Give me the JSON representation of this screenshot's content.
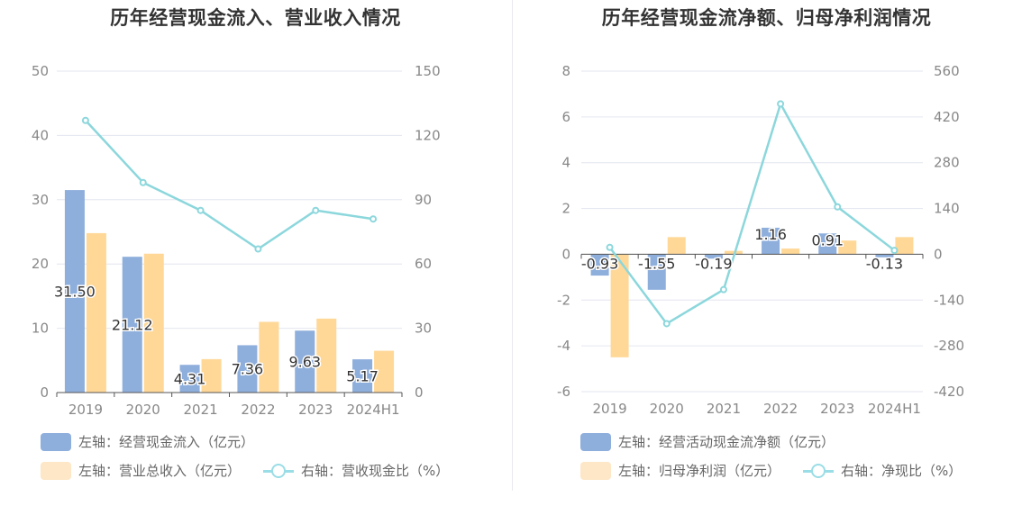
{
  "chart_data": [
    {
      "type": "bar",
      "title": "历年经营现金流入、营业收入情况",
      "categories": [
        "2019",
        "2020",
        "2021",
        "2022",
        "2023",
        "2024H1"
      ],
      "left_axis": {
        "ylim": [
          0,
          50
        ],
        "ticks": [
          0,
          10,
          20,
          30,
          40,
          50
        ]
      },
      "right_axis": {
        "ylim": [
          0,
          150
        ],
        "ticks": [
          0,
          30,
          60,
          90,
          120,
          150
        ]
      },
      "grid": true,
      "legend_position": "bottom",
      "series": [
        {
          "name": "左轴：经营现金流入（亿元）",
          "kind": "bar",
          "axis": "left",
          "color": "#8eaedc",
          "values": [
            31.5,
            21.12,
            4.31,
            7.36,
            9.63,
            5.17
          ],
          "labels": [
            "31.50",
            "21.12",
            "4.31",
            "7.36",
            "9.63",
            "5.17"
          ]
        },
        {
          "name": "左轴：营业总收入（亿元）",
          "kind": "bar",
          "axis": "left",
          "color": "#ffd898",
          "values": [
            24.8,
            21.6,
            5.2,
            11.0,
            11.5,
            6.5
          ]
        },
        {
          "name": "右轴：营收现金比（%）",
          "kind": "line",
          "axis": "right",
          "color": "#8cd7dc",
          "values": [
            127,
            98,
            85,
            67,
            85,
            81
          ]
        }
      ]
    },
    {
      "type": "bar",
      "title": "历年经营现金流净额、归母净利润情况",
      "categories": [
        "2019",
        "2020",
        "2021",
        "2022",
        "2023",
        "2024H1"
      ],
      "left_axis": {
        "ylim": [
          -6,
          8
        ],
        "ticks": [
          -6,
          -4,
          -2,
          0,
          2,
          4,
          6,
          8
        ]
      },
      "right_axis": {
        "ylim": [
          -420,
          560
        ],
        "ticks": [
          -420,
          -280,
          -140,
          0,
          140,
          280,
          420,
          560
        ]
      },
      "grid": true,
      "legend_position": "bottom",
      "series": [
        {
          "name": "左轴：经营活动现金流净额（亿元）",
          "kind": "bar",
          "axis": "left",
          "color": "#8eaedc",
          "values": [
            -0.93,
            -1.55,
            -0.19,
            1.16,
            0.91,
            -0.13
          ],
          "labels": [
            "-0.93",
            "-1.55",
            "-0.19",
            "1.16",
            "0.91",
            "-0.13"
          ]
        },
        {
          "name": "左轴：归母净利润（亿元）",
          "kind": "bar",
          "axis": "left",
          "color": "#ffd898",
          "values": [
            -4.5,
            0.75,
            0.15,
            0.25,
            0.6,
            0.75
          ]
        },
        {
          "name": "右轴：净现比（%）",
          "kind": "line",
          "axis": "right",
          "color": "#8cd7dc",
          "values": [
            21,
            -212,
            -108,
            460,
            145,
            12
          ]
        }
      ]
    }
  ]
}
